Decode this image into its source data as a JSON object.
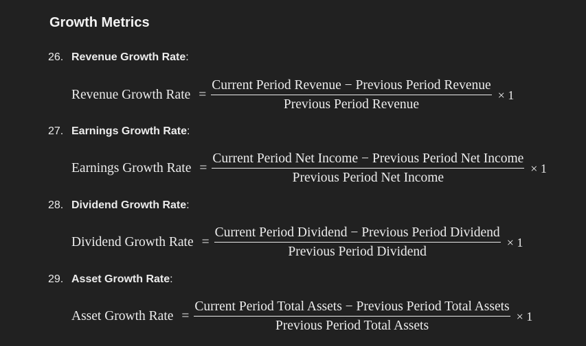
{
  "heading": "Growth Metrics",
  "items": [
    {
      "number": "26.",
      "label": "Revenue Growth Rate",
      "suffix": ":",
      "lhs": "Revenue Growth Rate",
      "eq": "=",
      "numerator": "Current Period Revenue − Previous Period Revenue",
      "denominator": "Previous Period Revenue",
      "times": "× 1"
    },
    {
      "number": "27.",
      "label": "Earnings Growth Rate",
      "suffix": ":",
      "lhs": "Earnings Growth Rate",
      "eq": "=",
      "numerator": "Current Period Net Income − Previous Period Net Income",
      "denominator": "Previous Period Net Income",
      "times": "× 1"
    },
    {
      "number": "28.",
      "label": "Dividend Growth Rate",
      "suffix": ":",
      "lhs": "Dividend Growth Rate",
      "eq": "=",
      "numerator": "Current Period Dividend − Previous Period Dividend",
      "denominator": "Previous Period Dividend",
      "times": "× 1"
    },
    {
      "number": "29.",
      "label": "Asset Growth Rate",
      "suffix": ":",
      "lhs": "Asset Growth Rate",
      "eq": "=",
      "numerator": "Current Period Total Assets − Previous Period Total Assets",
      "denominator": "Previous Period Total Assets",
      "times": "× 1"
    }
  ]
}
